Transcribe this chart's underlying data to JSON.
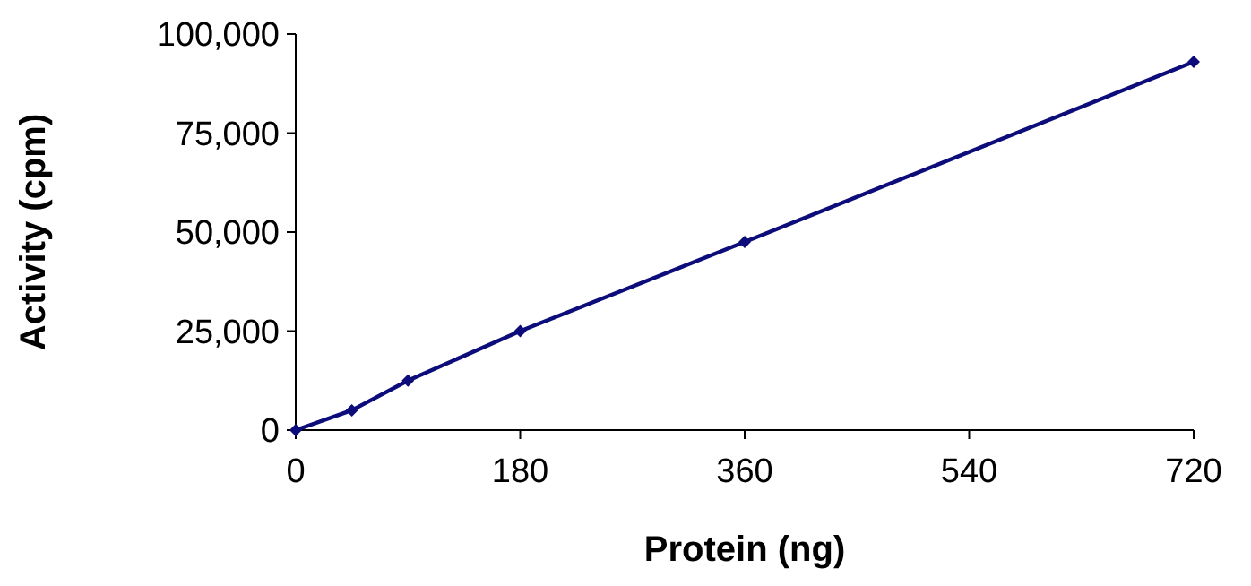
{
  "chart_data": {
    "type": "line",
    "xlabel": "Protein (ng)",
    "ylabel": "Activity (cpm)",
    "x": [
      0,
      45,
      90,
      180,
      360,
      720
    ],
    "series": [
      {
        "color": "#0c0c7a",
        "values": [
          0,
          5000,
          12500,
          25000,
          47500,
          93000
        ]
      }
    ],
    "xlim": [
      0,
      720
    ],
    "xticks": [
      0,
      180,
      360,
      540,
      720
    ],
    "ylim": [
      0,
      100000
    ],
    "yticks": [
      {
        "value": 0,
        "label": "0"
      },
      {
        "value": 25000,
        "label": "25,000"
      },
      {
        "value": 50000,
        "label": "50,000"
      },
      {
        "value": 75000,
        "label": "75,000"
      },
      {
        "value": 100000,
        "label": "100,000"
      }
    ],
    "marker": "diamond",
    "line_style": "solid"
  }
}
